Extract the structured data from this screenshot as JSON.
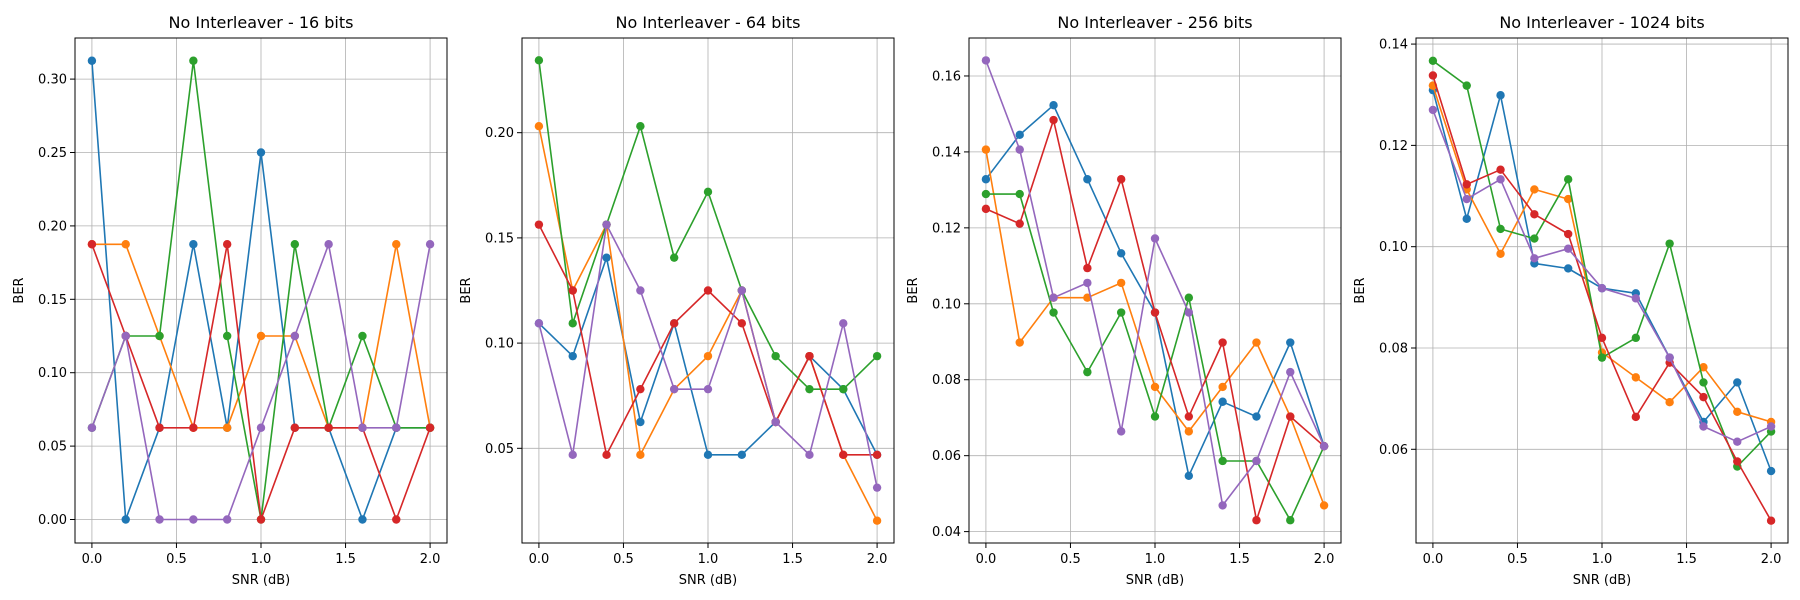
{
  "chart_data": [
    {
      "type": "line",
      "title": "No Interleaver - 16 bits",
      "xlabel": "SNR (dB)",
      "ylabel": "BER",
      "x": [
        0.0,
        0.2,
        0.4,
        0.6,
        0.8,
        1.0,
        1.2,
        1.4,
        1.6,
        1.8,
        2.0
      ],
      "xlim": [
        -0.1,
        2.1
      ],
      "ylim": [
        -0.016,
        0.328
      ],
      "xticks": [
        0.0,
        0.5,
        1.0,
        1.5,
        2.0
      ],
      "xtick_labels": [
        "0.0",
        "0.5",
        "1.0",
        "1.5",
        "2.0"
      ],
      "yticks": [
        0.0,
        0.05,
        0.1,
        0.15,
        0.2,
        0.25,
        0.3
      ],
      "ytick_labels": [
        "0.00",
        "0.05",
        "0.10",
        "0.15",
        "0.20",
        "0.25",
        "0.30"
      ],
      "grid": true,
      "series": [
        {
          "color": "#1f77b4",
          "values": [
            0.3125,
            0.0,
            0.0625,
            0.1875,
            0.0625,
            0.25,
            0.0625,
            0.0625,
            0.0,
            0.0625,
            0.0625
          ]
        },
        {
          "color": "#ff7f0e",
          "values": [
            0.1875,
            0.1875,
            0.125,
            0.0625,
            0.0625,
            0.125,
            0.125,
            0.0625,
            0.0625,
            0.1875,
            0.0625
          ]
        },
        {
          "color": "#2ca02c",
          "values": [
            0.0625,
            0.125,
            0.125,
            0.3125,
            0.125,
            0.0,
            0.1875,
            0.0625,
            0.125,
            0.0625,
            0.0625
          ]
        },
        {
          "color": "#d62728",
          "values": [
            0.1875,
            0.125,
            0.0625,
            0.0625,
            0.1875,
            0.0,
            0.0625,
            0.0625,
            0.0625,
            0.0,
            0.0625
          ]
        },
        {
          "color": "#9467bd",
          "values": [
            0.0625,
            0.125,
            0.0,
            0.0,
            0.0,
            0.0625,
            0.125,
            0.1875,
            0.0625,
            0.0625,
            0.1875
          ]
        }
      ]
    },
    {
      "type": "line",
      "title": "No Interleaver - 64 bits",
      "xlabel": "SNR (dB)",
      "ylabel": "BER",
      "x": [
        0.0,
        0.2,
        0.4,
        0.6,
        0.8,
        1.0,
        1.2,
        1.4,
        1.6,
        1.8,
        2.0
      ],
      "xlim": [
        -0.1,
        2.1
      ],
      "ylim": [
        0.005,
        0.245
      ],
      "xticks": [
        0.0,
        0.5,
        1.0,
        1.5,
        2.0
      ],
      "xtick_labels": [
        "0.0",
        "0.5",
        "1.0",
        "1.5",
        "2.0"
      ],
      "yticks": [
        0.05,
        0.1,
        0.15,
        0.2
      ],
      "ytick_labels": [
        "0.05",
        "0.10",
        "0.15",
        "0.20"
      ],
      "grid": true,
      "series": [
        {
          "color": "#1f77b4",
          "values": [
            0.1094,
            0.0938,
            0.1406,
            0.0625,
            0.1094,
            0.0469,
            0.0469,
            0.0625,
            0.0938,
            0.0781,
            0.0469
          ]
        },
        {
          "color": "#ff7f0e",
          "values": [
            0.2031,
            0.125,
            0.1563,
            0.0469,
            0.0781,
            0.0938,
            0.125,
            0.0625,
            0.0938,
            0.0469,
            0.0156
          ]
        },
        {
          "color": "#2ca02c",
          "values": [
            0.2344,
            0.1094,
            0.1563,
            0.2031,
            0.1406,
            0.1719,
            0.125,
            0.0938,
            0.0781,
            0.0781,
            0.0938
          ]
        },
        {
          "color": "#d62728",
          "values": [
            0.1563,
            0.125,
            0.0469,
            0.0781,
            0.1094,
            0.125,
            0.1094,
            0.0625,
            0.0938,
            0.0469,
            0.0469
          ]
        },
        {
          "color": "#9467bd",
          "values": [
            0.1094,
            0.0469,
            0.1563,
            0.125,
            0.0781,
            0.0781,
            0.125,
            0.0625,
            0.0469,
            0.1094,
            0.0313
          ]
        }
      ]
    },
    {
      "type": "line",
      "title": "No Interleaver - 256 bits",
      "xlabel": "SNR (dB)",
      "ylabel": "BER",
      "x": [
        0.0,
        0.2,
        0.4,
        0.6,
        0.8,
        1.0,
        1.2,
        1.4,
        1.6,
        1.8,
        2.0
      ],
      "xlim": [
        -0.1,
        2.1
      ],
      "ylim": [
        0.037,
        0.17
      ],
      "xticks": [
        0.0,
        0.5,
        1.0,
        1.5,
        2.0
      ],
      "xtick_labels": [
        "0.0",
        "0.5",
        "1.0",
        "1.5",
        "2.0"
      ],
      "yticks": [
        0.04,
        0.06,
        0.08,
        0.1,
        0.12,
        0.14,
        0.16
      ],
      "ytick_labels": [
        "0.04",
        "0.06",
        "0.08",
        "0.10",
        "0.12",
        "0.14",
        "0.16"
      ],
      "grid": true,
      "series": [
        {
          "color": "#1f77b4",
          "values": [
            0.1328,
            0.1445,
            0.1523,
            0.1328,
            0.1133,
            0.0977,
            0.0547,
            0.0742,
            0.0703,
            0.0898,
            0.0625
          ]
        },
        {
          "color": "#ff7f0e",
          "values": [
            0.1406,
            0.0898,
            0.1016,
            0.1016,
            0.1055,
            0.0781,
            0.0664,
            0.0781,
            0.0898,
            0.0703,
            0.0469
          ]
        },
        {
          "color": "#2ca02c",
          "values": [
            0.1289,
            0.1289,
            0.0977,
            0.082,
            0.0977,
            0.0703,
            0.1016,
            0.0586,
            0.0586,
            0.043,
            0.0625
          ]
        },
        {
          "color": "#d62728",
          "values": [
            0.125,
            0.1211,
            0.1484,
            0.1094,
            0.1328,
            0.0977,
            0.0703,
            0.0898,
            0.043,
            0.0703,
            0.0625
          ]
        },
        {
          "color": "#9467bd",
          "values": [
            0.1641,
            0.1406,
            0.1016,
            0.1055,
            0.0664,
            0.1172,
            0.0977,
            0.0469,
            0.0586,
            0.082,
            0.0625
          ]
        }
      ]
    },
    {
      "type": "line",
      "title": "No Interleaver - 1024 bits",
      "xlabel": "SNR (dB)",
      "ylabel": "BER",
      "x": [
        0.0,
        0.2,
        0.4,
        0.6,
        0.8,
        1.0,
        1.2,
        1.4,
        1.6,
        1.8,
        2.0
      ],
      "xlim": [
        -0.1,
        2.1
      ],
      "ylim": [
        0.0415,
        0.1412
      ],
      "xticks": [
        0.0,
        0.5,
        1.0,
        1.5,
        2.0
      ],
      "xtick_labels": [
        "0.0",
        "0.5",
        "1.0",
        "1.5",
        "2.0"
      ],
      "yticks": [
        0.06,
        0.08,
        0.1,
        0.12,
        0.14
      ],
      "ytick_labels": [
        "0.06",
        "0.08",
        "0.10",
        "0.12",
        "0.14"
      ],
      "grid": true,
      "series": [
        {
          "color": "#1f77b4",
          "values": [
            0.1309,
            0.1055,
            0.1299,
            0.0967,
            0.0957,
            0.0918,
            0.0908,
            0.0781,
            0.0654,
            0.0732,
            0.0557
          ]
        },
        {
          "color": "#ff7f0e",
          "values": [
            0.1318,
            0.1113,
            0.0986,
            0.1113,
            0.1094,
            0.0791,
            0.0742,
            0.0693,
            0.0762,
            0.0674,
            0.0654
          ]
        },
        {
          "color": "#2ca02c",
          "values": [
            0.1367,
            0.1318,
            0.1035,
            0.1016,
            0.1133,
            0.0781,
            0.082,
            0.1006,
            0.0732,
            0.0566,
            0.0635
          ]
        },
        {
          "color": "#d62728",
          "values": [
            0.1338,
            0.1123,
            0.1152,
            0.1064,
            0.1025,
            0.082,
            0.0664,
            0.0771,
            0.0703,
            0.0576,
            0.0459
          ]
        },
        {
          "color": "#9467bd",
          "values": [
            0.127,
            0.1094,
            0.1133,
            0.0977,
            0.0996,
            0.0918,
            0.0898,
            0.0781,
            0.0645,
            0.0615,
            0.0645
          ]
        }
      ]
    }
  ]
}
